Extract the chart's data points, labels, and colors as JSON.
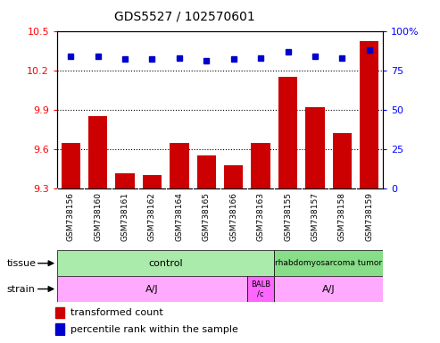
{
  "title": "GDS5527 / 102570601",
  "samples": [
    "GSM738156",
    "GSM738160",
    "GSM738161",
    "GSM738162",
    "GSM738164",
    "GSM738165",
    "GSM738166",
    "GSM738163",
    "GSM738155",
    "GSM738157",
    "GSM738158",
    "GSM738159"
  ],
  "transformed_count": [
    9.65,
    9.85,
    9.42,
    9.4,
    9.65,
    9.55,
    9.48,
    9.65,
    10.15,
    9.92,
    9.72,
    10.42
  ],
  "percentile_rank": [
    84,
    84,
    82,
    82,
    83,
    81,
    82,
    83,
    87,
    84,
    83,
    88
  ],
  "ylim_left": [
    9.3,
    10.5
  ],
  "ylim_right": [
    0,
    100
  ],
  "yticks_left": [
    9.3,
    9.6,
    9.9,
    10.2,
    10.5
  ],
  "yticks_right": [
    0,
    25,
    50,
    75,
    100
  ],
  "ytick_right_labels": [
    "0",
    "25",
    "50",
    "75",
    "100%"
  ],
  "bar_color": "#cc0000",
  "dot_color": "#0000cc",
  "tissue_control_label": "control",
  "tissue_tumor_label": "rhabdomyosarcoma tumor",
  "tissue_control_color": "#aaeaaa",
  "tissue_tumor_color": "#88dd88",
  "strain_aj_color": "#ffaaff",
  "strain_balb_color": "#ff66ff",
  "strain_aj_label": "A/J",
  "strain_balb_label": "BALB\n/c",
  "legend_bar_label": "transformed count",
  "legend_dot_label": "percentile rank within the sample",
  "grid_color": "black",
  "grid_linestyle": ":",
  "grid_linewidth": 0.8,
  "xticklabel_bg": "#d8d8d8",
  "main_bg": "white",
  "n_control": 8,
  "balb_index": 7,
  "n_samples": 12
}
